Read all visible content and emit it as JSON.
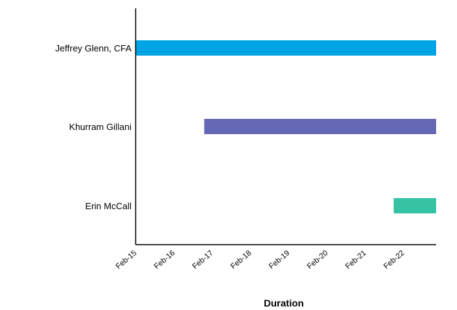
{
  "chart_data": {
    "type": "bar",
    "orientation": "horizontal",
    "title": "",
    "xlabel": "Duration",
    "ylabel": "",
    "x_ticks": [
      "Feb-15",
      "Feb-16",
      "Feb-17",
      "Feb-18",
      "Feb-19",
      "Feb-20",
      "Feb-21",
      "Feb-22"
    ],
    "x_range": [
      "2015-02",
      "2022-10"
    ],
    "grid": false,
    "legend": "none",
    "categories": [
      "Jeffrey Glenn, CFA",
      "Khurram Gillani",
      "Erin McCall"
    ],
    "bars": [
      {
        "category": "Jeffrey Glenn, CFA",
        "start": "2015-02",
        "end": "2022-10",
        "color": "#00a4e4"
      },
      {
        "category": "Khurram Gillani",
        "start": "2016-11",
        "end": "2022-10",
        "color": "#6568b4"
      },
      {
        "category": "Erin McCall",
        "start": "2021-09",
        "end": "2022-10",
        "color": "#35c3a3"
      }
    ]
  }
}
